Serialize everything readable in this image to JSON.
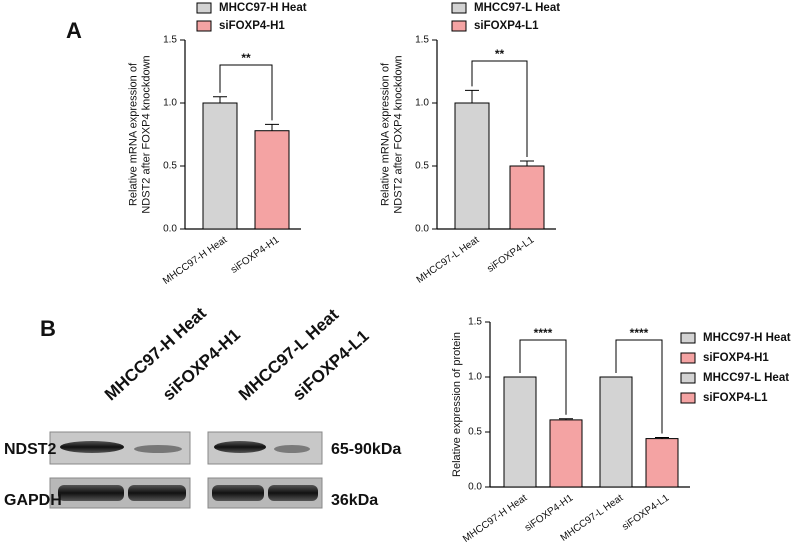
{
  "panels": [
    "A",
    "B"
  ],
  "blot": {
    "lanes": [
      "MHCC97-H Heat",
      "siFOXP4-H1",
      "MHCC97-L Heat",
      "siFOXP4-L1"
    ],
    "rows": [
      {
        "name": "NDST2",
        "size": "65-90kDa"
      },
      {
        "name": "GAPDH",
        "size": "36kDa"
      }
    ]
  },
  "chart_data": [
    {
      "type": "bar",
      "ylabel": [
        "Relative mRNA expression of",
        "NDST2 after FOXP4 knockdown"
      ],
      "categories": [
        "MHCC97-H Heat",
        "siFOXP4-H1"
      ],
      "values": [
        1.0,
        0.78
      ],
      "errors": [
        0.05,
        0.05
      ],
      "colors": [
        "#d3d3d3",
        "#f4a3a3"
      ],
      "ylim": [
        0,
        1.5
      ],
      "yticks": [
        {
          "value": 0,
          "label": "0.0"
        },
        {
          "value": 0.5,
          "label": "0.5"
        },
        {
          "value": 1,
          "label": "1.0"
        },
        {
          "value": 1.5,
          "label": "1.5"
        }
      ],
      "annotations": [
        {
          "text": "**",
          "between": [
            "MHCC97-H Heat",
            "siFOXP4-H1"
          ]
        }
      ]
    },
    {
      "type": "bar",
      "ylabel": [
        "Relative mRNA expression of",
        "NDST2 after FOXP4 knockdown"
      ],
      "categories": [
        "MHCC97-L Heat",
        "siFOXP4-L1"
      ],
      "values": [
        1.0,
        0.5
      ],
      "errors": [
        0.1,
        0.04
      ],
      "colors": [
        "#d3d3d3",
        "#f4a3a3"
      ],
      "ylim": [
        0,
        1.5
      ],
      "yticks": [
        {
          "value": 0,
          "label": "0.0"
        },
        {
          "value": 0.5,
          "label": "0.5"
        },
        {
          "value": 1,
          "label": "1.0"
        },
        {
          "value": 1.5,
          "label": "1.5"
        }
      ],
      "annotations": [
        {
          "text": "**",
          "between": [
            "MHCC97-L Heat",
            "siFOXP4-L1"
          ]
        }
      ]
    },
    {
      "type": "bar",
      "ylabel": [
        "Relative expression of protein"
      ],
      "categories": [
        "MHCC97-H Heat",
        "siFOXP4-H1",
        "MHCC97-L Heat",
        "siFOXP4-L1"
      ],
      "values": [
        1.0,
        0.61,
        1.0,
        0.44
      ],
      "errors": [
        0,
        0.01,
        0,
        0.01
      ],
      "colors": [
        "#d3d3d3",
        "#f4a3a3",
        "#d3d3d3",
        "#f4a3a3"
      ],
      "ylim": [
        0,
        1.5
      ],
      "yticks": [
        {
          "value": 0,
          "label": "0.0"
        },
        {
          "value": 0.5,
          "label": "0.5"
        },
        {
          "value": 1,
          "label": "1.0"
        },
        {
          "value": 1.5,
          "label": "1.5"
        }
      ],
      "annotations": [
        {
          "text": "****",
          "between": [
            "MHCC97-H Heat",
            "siFOXP4-H1"
          ]
        },
        {
          "text": "****",
          "between": [
            "MHCC97-L Heat",
            "siFOXP4-L1"
          ]
        }
      ]
    }
  ]
}
